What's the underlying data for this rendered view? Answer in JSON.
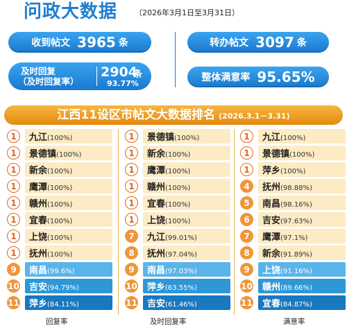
{
  "header": {
    "title": "问政大数据",
    "date_range": "（2026年3月1日至3月31日）"
  },
  "stats": {
    "received": {
      "label": "收到帖文",
      "value": "3965",
      "unit": "条"
    },
    "transferred": {
      "label": "转办帖文",
      "value": "3097",
      "unit": "条"
    },
    "timely": {
      "label_line1": "及时回复",
      "label_line2": "（及时回复率）",
      "value": "2904",
      "unit": "条",
      "rate": "93.77%"
    },
    "satisfaction": {
      "label": "整体满意率",
      "value": "95.65%"
    }
  },
  "banner": {
    "title": "江西11设区市帖文大数据排名",
    "date": "(2026.3.1－3.31)"
  },
  "colors": {
    "accent_blue": "#1a78cf",
    "accent_orange": "#e58a10",
    "row_cream": "#fcebc4"
  },
  "rankings": [
    {
      "footer": "回复率",
      "rows": [
        {
          "rank": "1",
          "city": "九江",
          "pct": "(100%)"
        },
        {
          "rank": "1",
          "city": "景德镇",
          "pct": "(100%)"
        },
        {
          "rank": "1",
          "city": "新余",
          "pct": "(100%)"
        },
        {
          "rank": "1",
          "city": "鹰潭",
          "pct": "(100%)"
        },
        {
          "rank": "1",
          "city": "赣州",
          "pct": "(100%)"
        },
        {
          "rank": "1",
          "city": "宜春",
          "pct": "(100%)"
        },
        {
          "rank": "1",
          "city": "上饶",
          "pct": "(100%)"
        },
        {
          "rank": "1",
          "city": "抚州",
          "pct": "(100%)"
        },
        {
          "rank": "9",
          "city": "南昌",
          "pct": "(99.6%)"
        },
        {
          "rank": "10",
          "city": "吉安",
          "pct": "(94.79%)"
        },
        {
          "rank": "11",
          "city": "萍乡",
          "pct": "(84.11%)"
        }
      ]
    },
    {
      "footer": "及时回复率",
      "rows": [
        {
          "rank": "1",
          "city": "景德镇",
          "pct": "(100%)"
        },
        {
          "rank": "1",
          "city": "新余",
          "pct": "(100%)"
        },
        {
          "rank": "1",
          "city": "鹰潭",
          "pct": "(100%)"
        },
        {
          "rank": "1",
          "city": "赣州",
          "pct": "(100%)"
        },
        {
          "rank": "1",
          "city": "宜春",
          "pct": "(100%)"
        },
        {
          "rank": "1",
          "city": "上饶",
          "pct": "(100%)"
        },
        {
          "rank": "7",
          "city": "九江",
          "pct": "(99.01%)"
        },
        {
          "rank": "8",
          "city": "抚州",
          "pct": "(97.04%)"
        },
        {
          "rank": "9",
          "city": "南昌",
          "pct": "(97.03%)"
        },
        {
          "rank": "10",
          "city": "萍乡",
          "pct": "(63.55%)"
        },
        {
          "rank": "11",
          "city": "吉安",
          "pct": "(61.46%)"
        }
      ]
    },
    {
      "footer": "满意率",
      "rows": [
        {
          "rank": "1",
          "city": "九江",
          "pct": "(100%)"
        },
        {
          "rank": "1",
          "city": "景德镇",
          "pct": "(100%)"
        },
        {
          "rank": "1",
          "city": "萍乡",
          "pct": "(100%)"
        },
        {
          "rank": "4",
          "city": "抚州",
          "pct": "(98.88%)"
        },
        {
          "rank": "5",
          "city": "南昌",
          "pct": "(98.16%)"
        },
        {
          "rank": "6",
          "city": "吉安",
          "pct": "(97.63%)"
        },
        {
          "rank": "7",
          "city": "鹰潭",
          "pct": "(97.1%)"
        },
        {
          "rank": "8",
          "city": "新余",
          "pct": "(91.89%)"
        },
        {
          "rank": "9",
          "city": "上饶",
          "pct": "(91.16%)"
        },
        {
          "rank": "10",
          "city": "赣州",
          "pct": "(89.66%)"
        },
        {
          "rank": "11",
          "city": "宜春",
          "pct": "(84.87%)"
        }
      ]
    }
  ]
}
